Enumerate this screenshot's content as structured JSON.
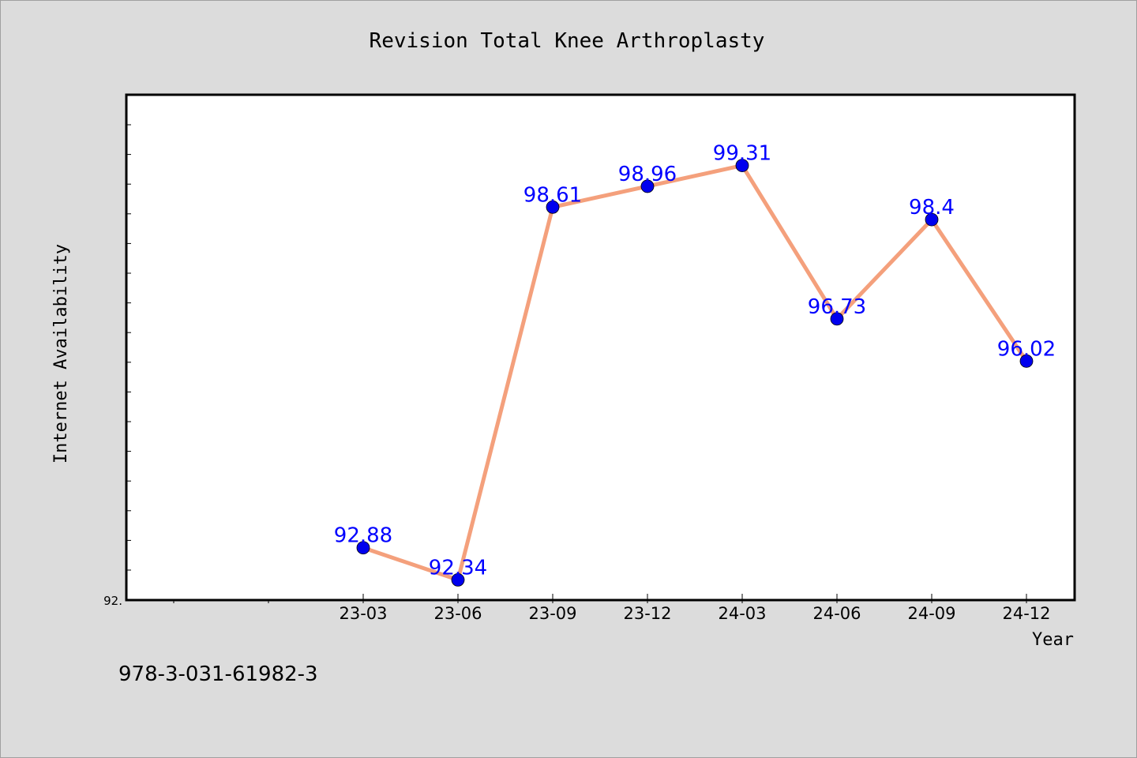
{
  "chart_data": {
    "type": "line",
    "title": "Revision Total Knee Arthroplasty",
    "xlabel": "Year",
    "ylabel": "Internet Availability",
    "categories": [
      "23-03",
      "23-06",
      "23-09",
      "23-12",
      "24-03",
      "24-06",
      "24-09",
      "24-12"
    ],
    "series": [
      {
        "values": [
          92.88,
          92.34,
          98.61,
          98.96,
          99.31,
          96.73,
          98.4,
          96.02
        ],
        "labels": [
          "92.88",
          "92.34",
          "98.61",
          "98.96",
          "99.31",
          "96.73",
          "98.4",
          "96.02"
        ],
        "line_color": "#f4a07c",
        "marker_color": "#0000ee"
      }
    ],
    "ylim": [
      92.0,
      100.5
    ],
    "ytick_label": "92.",
    "grid": false,
    "legend": "none",
    "label_color": "#0000ff"
  },
  "footer": {
    "code": "978-3-031-61982-3"
  }
}
